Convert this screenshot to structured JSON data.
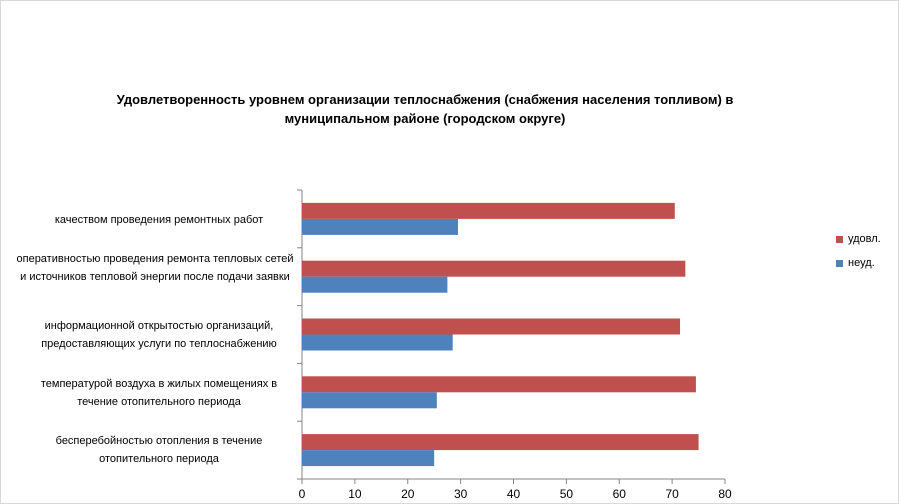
{
  "chart_data": {
    "type": "bar",
    "orientation": "horizontal",
    "title": "Удовлетворенность уровнем организации теплоснабжения (снабжения населения топливом) в муниципальном районе (городском округе)",
    "categories": [
      "качеством проведения ремонтных работ",
      "оперативностью проведения ремонта тепловых сетей и источников тепловой энергии после подачи заявки",
      "информационной открытостью организаций, предоставляющих услуги по теплоснабжению",
      "температурой воздуха в жилых помещениях в течение отопительного периода",
      "бесперебойностью отопления в течение отопительного периода"
    ],
    "series": [
      {
        "name": "удовл.",
        "color": "#c0504d",
        "values": [
          70.5,
          72.5,
          71.5,
          74.5,
          75
        ]
      },
      {
        "name": "неуд.",
        "color": "#4f81bd",
        "values": [
          29.5,
          27.5,
          28.5,
          25.5,
          25
        ]
      }
    ],
    "xlim": [
      0,
      80
    ],
    "xticks": [
      "0",
      "10",
      "20",
      "30",
      "40",
      "50",
      "60",
      "70",
      "80"
    ],
    "xlabel": "",
    "ylabel": "",
    "grid": false,
    "legend_position": "right"
  }
}
